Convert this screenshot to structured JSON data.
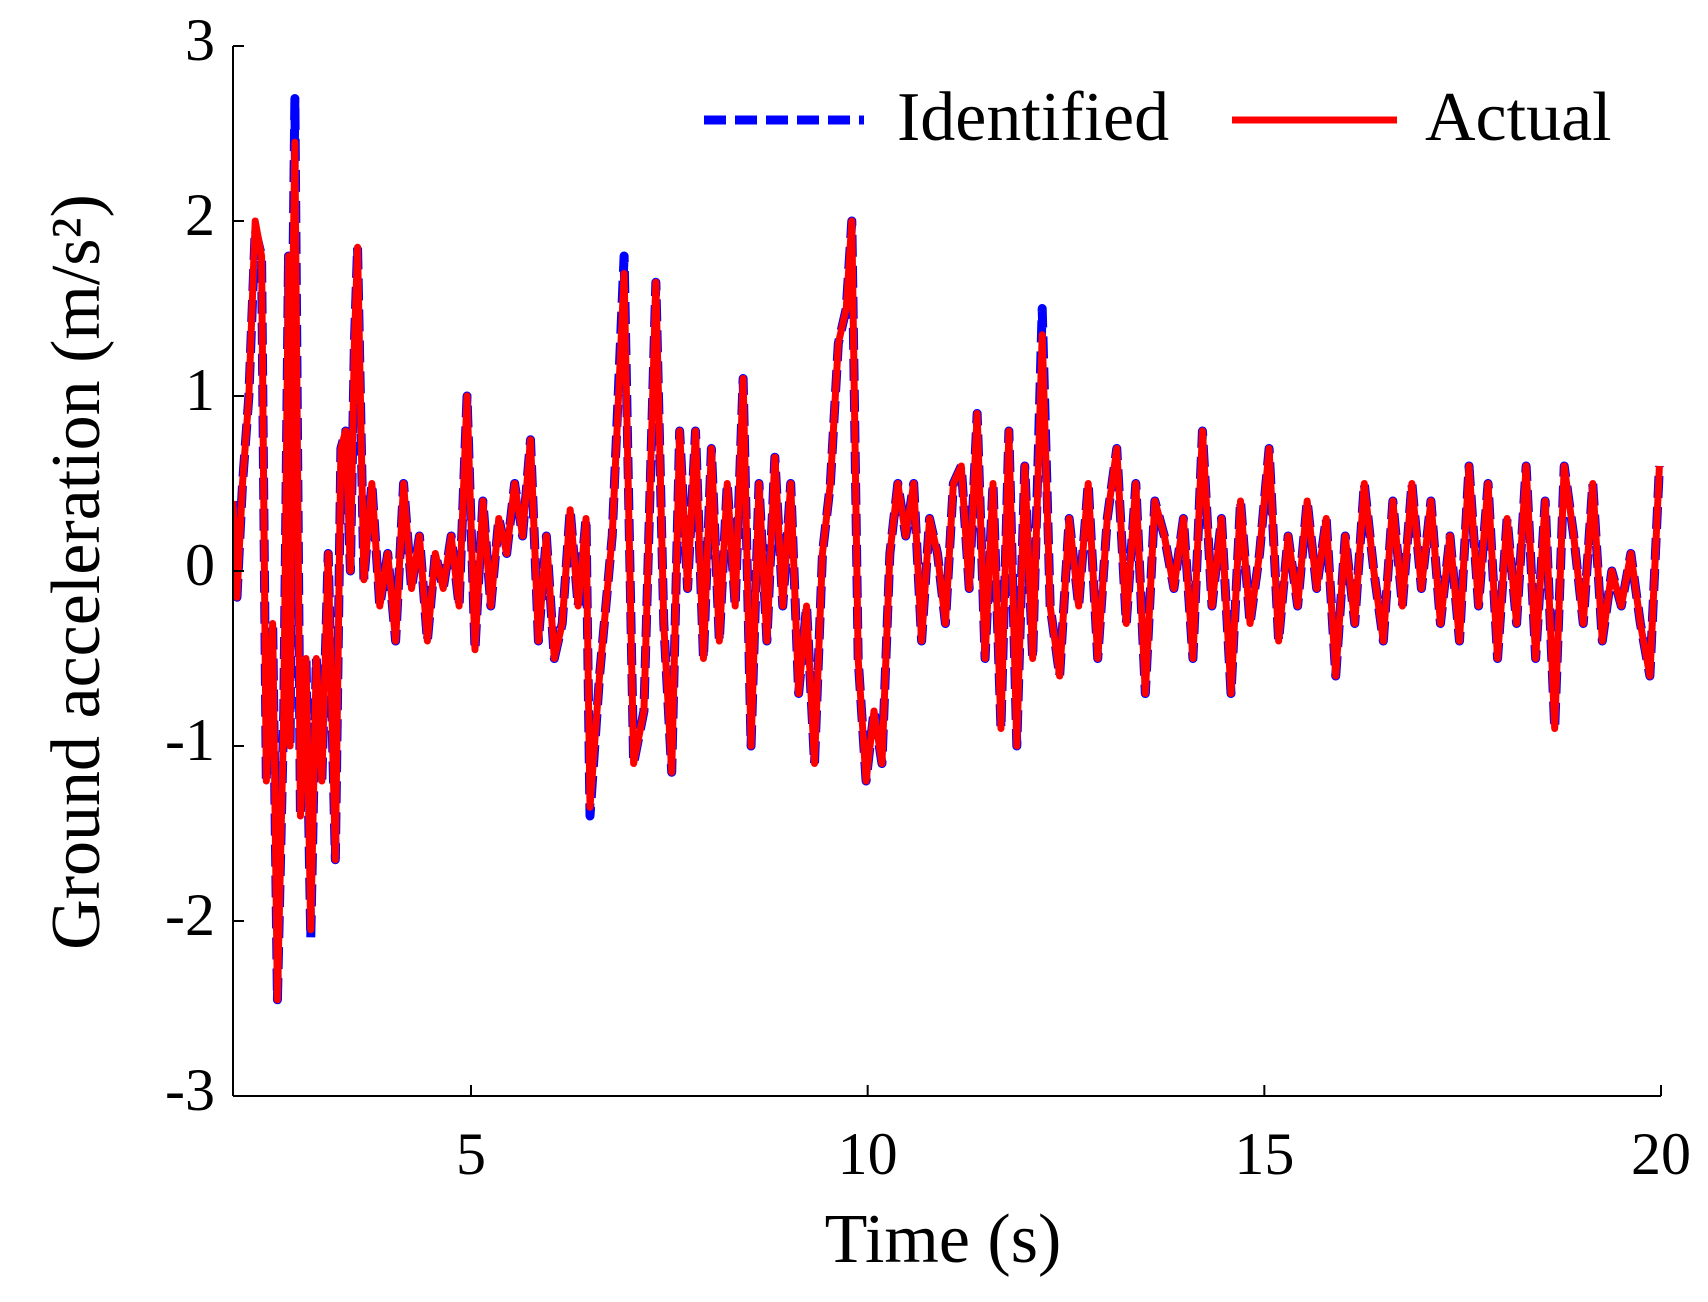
{
  "chart_data": {
    "type": "line",
    "xlabel": "Time (s)",
    "ylabel": "Ground acceleration (m/s²)",
    "xlim": [
      2,
      20
    ],
    "xticks": [
      5,
      10,
      15,
      20
    ],
    "ylim": [
      -3,
      3
    ],
    "yticks": [
      -3,
      -2,
      -1,
      0,
      1,
      2,
      3
    ],
    "grid": false,
    "legend_position": "upper right",
    "x": [
      2.0,
      2.05,
      2.12,
      2.2,
      2.28,
      2.36,
      2.42,
      2.5,
      2.56,
      2.64,
      2.7,
      2.72,
      2.75,
      2.78,
      2.85,
      2.92,
      2.98,
      3.05,
      3.12,
      3.2,
      3.29,
      3.36,
      3.42,
      3.48,
      3.53,
      3.57,
      3.65,
      3.75,
      3.85,
      3.95,
      4.05,
      4.15,
      4.25,
      4.35,
      4.45,
      4.55,
      4.65,
      4.75,
      4.85,
      4.95,
      5.05,
      5.15,
      5.25,
      5.35,
      5.45,
      5.55,
      5.65,
      5.75,
      5.85,
      5.95,
      6.05,
      6.15,
      6.25,
      6.35,
      6.45,
      6.5,
      6.62,
      6.78,
      6.93,
      7.05,
      7.18,
      7.33,
      7.43,
      7.53,
      7.63,
      7.73,
      7.83,
      7.93,
      8.03,
      8.13,
      8.23,
      8.33,
      8.43,
      8.53,
      8.63,
      8.73,
      8.83,
      8.93,
      9.03,
      9.13,
      9.23,
      9.33,
      9.43,
      9.53,
      9.63,
      9.73,
      9.8,
      9.88,
      9.98,
      10.08,
      10.18,
      10.28,
      10.38,
      10.48,
      10.58,
      10.68,
      10.78,
      10.88,
      10.98,
      11.08,
      11.18,
      11.28,
      11.38,
      11.48,
      11.58,
      11.68,
      11.78,
      11.88,
      11.98,
      12.08,
      12.2,
      12.3,
      12.42,
      12.54,
      12.66,
      12.78,
      12.9,
      13.02,
      13.14,
      13.26,
      13.38,
      13.5,
      13.62,
      13.74,
      13.86,
      13.98,
      14.1,
      14.22,
      14.34,
      14.46,
      14.58,
      14.7,
      14.82,
      14.94,
      15.06,
      15.18,
      15.3,
      15.42,
      15.54,
      15.66,
      15.78,
      15.9,
      16.02,
      16.14,
      16.26,
      16.38,
      16.5,
      16.62,
      16.74,
      16.86,
      16.98,
      17.1,
      17.22,
      17.34,
      17.46,
      17.58,
      17.7,
      17.82,
      17.94,
      18.06,
      18.18,
      18.3,
      18.42,
      18.54,
      18.66,
      18.78,
      18.9,
      19.02,
      19.14,
      19.26,
      19.38,
      19.5,
      19.62,
      19.74,
      19.86,
      19.98
    ],
    "series": [
      {
        "name": "Identified",
        "color": "#0000ff",
        "linestyle": "dashed",
        "values": [
          0.4,
          -0.15,
          0.5,
          1.0,
          1.95,
          1.8,
          -1.2,
          -0.3,
          -2.45,
          -0.8,
          1.8,
          -1.0,
          1.5,
          2.7,
          -1.4,
          -0.5,
          -2.1,
          -0.5,
          -1.2,
          0.1,
          -1.65,
          0.7,
          0.8,
          0,
          1.3,
          1.85,
          -0.05,
          0.5,
          -0.2,
          0.1,
          -0.4,
          0.5,
          -0.1,
          0.2,
          -0.4,
          0.1,
          -0.1,
          0.2,
          -0.2,
          1.0,
          -0.45,
          0.4,
          -0.2,
          0.3,
          0.1,
          0.5,
          0.2,
          0.75,
          -0.4,
          0.2,
          -0.5,
          -0.3,
          0.35,
          -0.2,
          0.3,
          -1.4,
          -0.6,
          0.2,
          1.8,
          -1.1,
          -0.8,
          1.65,
          -0.3,
          -1.15,
          0.8,
          -0.1,
          0.8,
          -0.5,
          0.7,
          -0.4,
          0.5,
          -0.2,
          1.1,
          -1.0,
          0.5,
          -0.4,
          0.65,
          -0.2,
          0.5,
          -0.7,
          -0.2,
          -1.1,
          0.1,
          0.5,
          1.3,
          1.5,
          2.0,
          -0.5,
          -1.2,
          -0.8,
          -1.1,
          0.1,
          0.5,
          0.2,
          0.5,
          -0.4,
          0.3,
          0.1,
          -0.3,
          0.5,
          0.6,
          -0.1,
          0.9,
          -0.5,
          0.5,
          -0.9,
          0.8,
          -1.0,
          0.6,
          -0.5,
          1.5,
          -0.2,
          -0.6,
          0.3,
          -0.2,
          0.5,
          -0.5,
          0.3,
          0.7,
          -0.3,
          0.5,
          -0.7,
          0.4,
          0.2,
          -0.1,
          0.3,
          -0.5,
          0.8,
          -0.2,
          0.3,
          -0.7,
          0.4,
          -0.3,
          0.1,
          0.7,
          -0.4,
          0.2,
          -0.2,
          0.4,
          -0.1,
          0.3,
          -0.6,
          0.2,
          -0.3,
          0.5,
          0.0,
          -0.4,
          0.4,
          -0.2,
          0.5,
          -0.1,
          0.4,
          -0.3,
          0.2,
          -0.4,
          0.6,
          -0.2,
          0.5,
          -0.5,
          0.3,
          -0.3,
          0.6,
          -0.5,
          0.4,
          -0.9,
          0.6,
          0.2,
          -0.3,
          0.5,
          -0.4,
          0.0,
          -0.2,
          0.1,
          -0.3,
          -0.6,
          0.6
        ]
      },
      {
        "name": "Actual",
        "color": "#ff0000",
        "linestyle": "solid",
        "values": [
          0.4,
          -0.15,
          0.5,
          1.0,
          2.0,
          1.8,
          -1.2,
          -0.3,
          -2.45,
          -0.8,
          1.8,
          -1.0,
          1.5,
          2.45,
          -1.4,
          -0.5,
          -2.05,
          -0.5,
          -1.2,
          0.1,
          -1.65,
          0.7,
          0.8,
          0,
          1.3,
          1.85,
          -0.05,
          0.5,
          -0.2,
          0.1,
          -0.4,
          0.5,
          -0.1,
          0.2,
          -0.4,
          0.1,
          -0.1,
          0.2,
          -0.2,
          1.0,
          -0.45,
          0.4,
          -0.2,
          0.3,
          0.1,
          0.5,
          0.2,
          0.75,
          -0.4,
          0.2,
          -0.5,
          -0.3,
          0.35,
          -0.2,
          0.3,
          -1.35,
          -0.6,
          0.2,
          1.7,
          -1.1,
          -0.8,
          1.65,
          -0.3,
          -1.15,
          0.8,
          -0.1,
          0.8,
          -0.5,
          0.7,
          -0.4,
          0.5,
          -0.2,
          1.1,
          -1.0,
          0.5,
          -0.4,
          0.65,
          -0.2,
          0.5,
          -0.7,
          -0.2,
          -1.1,
          0.1,
          0.5,
          1.3,
          1.5,
          2.0,
          -0.5,
          -1.2,
          -0.8,
          -1.1,
          0.1,
          0.5,
          0.2,
          0.5,
          -0.4,
          0.3,
          0.1,
          -0.3,
          0.5,
          0.6,
          -0.1,
          0.9,
          -0.5,
          0.5,
          -0.9,
          0.8,
          -1.0,
          0.6,
          -0.5,
          1.35,
          -0.2,
          -0.6,
          0.3,
          -0.2,
          0.5,
          -0.5,
          0.3,
          0.7,
          -0.3,
          0.5,
          -0.7,
          0.4,
          0.2,
          -0.1,
          0.3,
          -0.5,
          0.8,
          -0.2,
          0.3,
          -0.7,
          0.4,
          -0.3,
          0.1,
          0.7,
          -0.4,
          0.2,
          -0.2,
          0.4,
          -0.1,
          0.3,
          -0.6,
          0.2,
          -0.3,
          0.5,
          0.0,
          -0.4,
          0.4,
          -0.2,
          0.5,
          -0.1,
          0.4,
          -0.3,
          0.2,
          -0.4,
          0.6,
          -0.2,
          0.5,
          -0.5,
          0.3,
          -0.3,
          0.6,
          -0.5,
          0.4,
          -0.9,
          0.6,
          0.2,
          -0.3,
          0.5,
          -0.4,
          0.0,
          -0.2,
          0.1,
          -0.3,
          -0.6,
          0.6
        ]
      }
    ]
  }
}
